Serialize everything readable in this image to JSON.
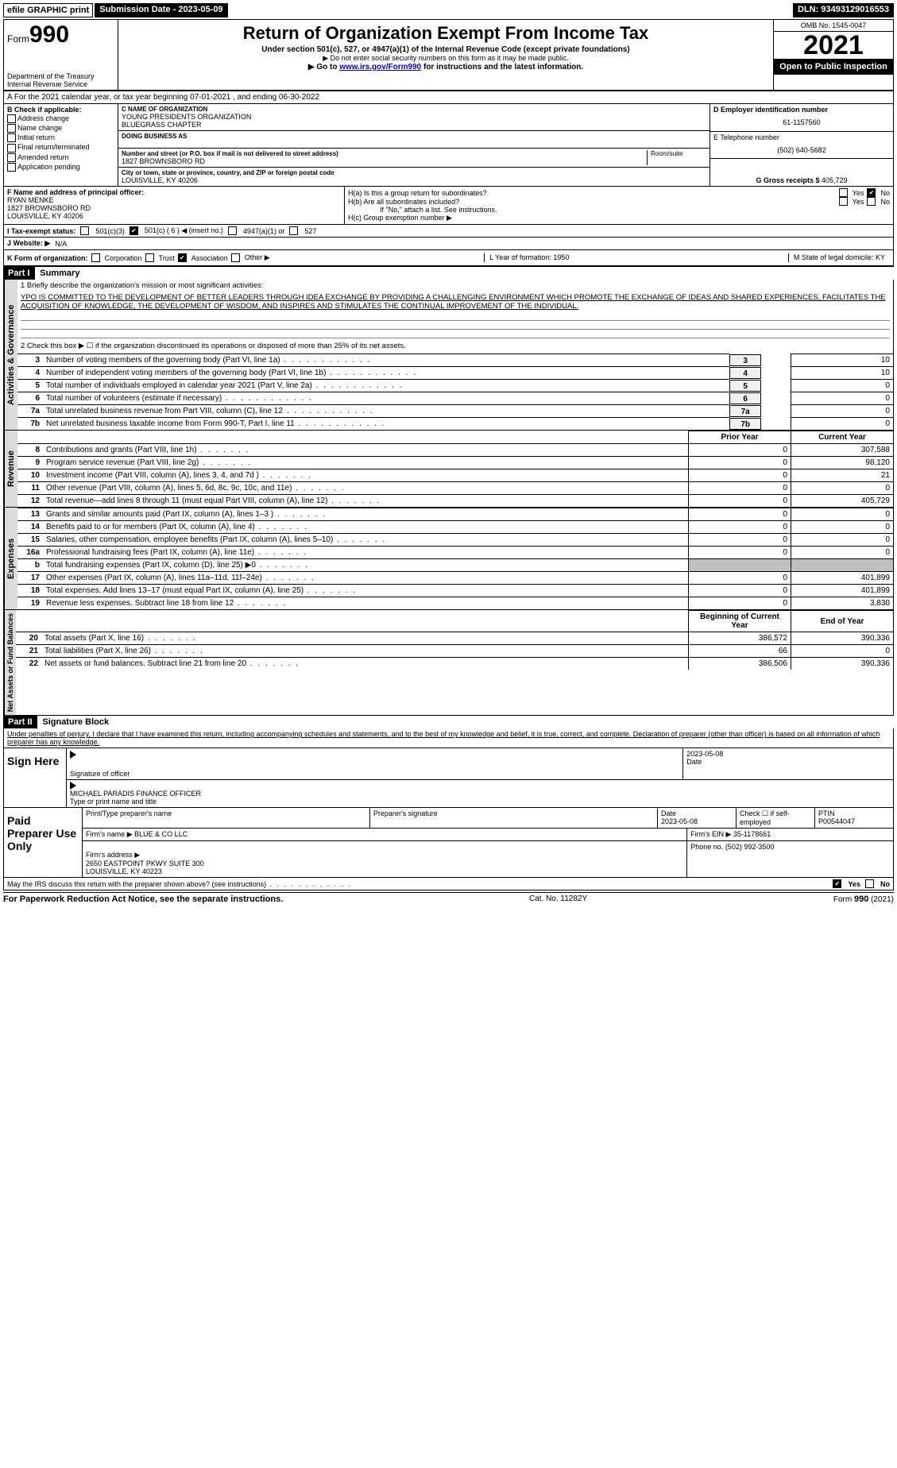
{
  "meta": {
    "efile": "efile GRAPHIC print",
    "submission_label": "Submission Date - 2023-05-09",
    "dln": "DLN: 93493129016553"
  },
  "header": {
    "form_prefix": "Form",
    "form_number": "990",
    "title": "Return of Organization Exempt From Income Tax",
    "subtitle1": "Under section 501(c), 527, or 4947(a)(1) of the Internal Revenue Code (except private foundations)",
    "subtitle2": "▶ Do not enter social security numbers on this form as it may be made public.",
    "goto_pre": "▶ Go to ",
    "goto_link": "www.irs.gov/Form990",
    "goto_post": " for instructions and the latest information.",
    "dept": "Department of the Treasury\nInternal Revenue Service",
    "omb": "OMB No. 1545-0047",
    "year": "2021",
    "open": "Open to Public Inspection"
  },
  "a_line": "A For the 2021 calendar year, or tax year beginning 07-01-2021    , and ending 06-30-2022",
  "b": {
    "label": "B Check if applicable:",
    "items": [
      "Address change",
      "Name change",
      "Initial return",
      "Final return/terminated",
      "Amended return",
      "Application pending"
    ]
  },
  "c": {
    "label": "C Name of organization",
    "name": "YOUNG PRESIDENTS ORGANIZATION\nBLUEGRASS CHAPTER",
    "dba_label": "Doing business as",
    "addr_label": "Number and street (or P.O. box if mail is not delivered to street address)",
    "room": "Room/suite",
    "addr": "1827 BROWNSBORO RD",
    "city_label": "City or town, state or province, country, and ZIP or foreign postal code",
    "city": "LOUISVILLE, KY  40206"
  },
  "right": {
    "d_label": "D Employer identification number",
    "d_val": "61-1157560",
    "e_label": "E Telephone number",
    "e_val": "(502) 640-5682",
    "g_label": "G Gross receipts $",
    "g_val": "405,729"
  },
  "f": {
    "label": "F Name and address of principal officer:",
    "name": "RYAN MENKE",
    "addr1": "1827 BROWNSBORO RD",
    "addr2": "LOUISVILLE, KY  40206"
  },
  "h": {
    "a": "H(a)  Is this a group return for subordinates?",
    "b": "H(b)  Are all subordinates included?",
    "note": "If \"No,\" attach a list. See instructions.",
    "c": "H(c)  Group exemption number ▶",
    "yes": "Yes",
    "no": "No"
  },
  "i": {
    "label": "I   Tax-exempt status:",
    "opts": [
      "501(c)(3)",
      "501(c) ( 6 ) ◀ (insert no.)",
      "4947(a)(1) or",
      "527"
    ]
  },
  "j": {
    "label": "J   Website: ▶",
    "val": "N/A"
  },
  "k": {
    "label": "K Form of organization:",
    "opts": [
      "Corporation",
      "Trust",
      "Association",
      "Other ▶"
    ],
    "l": "L Year of formation: 1950",
    "m": "M State of legal domicile: KY"
  },
  "part1": {
    "hdr": "Part I",
    "title": "Summary",
    "q1": "1  Briefly describe the organization's mission or most significant activities:",
    "mission": "YPO IS COMMITTED TO THE DEVELOPMENT OF BETTER LEADERS THROUGH IDEA EXCHANGE BY PROVIDING A CHALLENGING ENVIRONMENT WHICH PROMOTE THE EXCHANGE OF IDEAS AND SHARED EXPERIENCES, FACILITATES THE ACQUISITION OF KNOWLEDGE, THE DEVELOPMENT OF WISDOM, AND INSPIRES AND STIMULATES THE CONTINUAL IMPROVEMENT OF THE INDIVIDUAL.",
    "q2": "2   Check this box ▶ ☐  if the organization discontinued its operations or disposed of more than 25% of its net assets.",
    "vtabs": [
      "Activities & Governance",
      "Revenue",
      "Expenses",
      "Net Assets or Fund Balances"
    ]
  },
  "gov_lines": [
    {
      "n": "3",
      "d": "Number of voting members of the governing body (Part VI, line 1a)",
      "box": "3",
      "v": "10"
    },
    {
      "n": "4",
      "d": "Number of independent voting members of the governing body (Part VI, line 1b)",
      "box": "4",
      "v": "10"
    },
    {
      "n": "5",
      "d": "Total number of individuals employed in calendar year 2021 (Part V, line 2a)",
      "box": "5",
      "v": "0"
    },
    {
      "n": "6",
      "d": "Total number of volunteers (estimate if necessary)",
      "box": "6",
      "v": "0"
    },
    {
      "n": "7a",
      "d": "Total unrelated business revenue from Part VIII, column (C), line 12",
      "box": "7a",
      "v": "0"
    },
    {
      "n": "7b",
      "d": "Net unrelated business taxable income from Form 990-T, Part I, line 11",
      "box": "7b",
      "v": "0"
    }
  ],
  "two_col_hdr": {
    "prior": "Prior Year",
    "current": "Current Year"
  },
  "rev_lines": [
    {
      "n": "8",
      "d": "Contributions and grants (Part VIII, line 1h)",
      "p": "0",
      "c": "307,588"
    },
    {
      "n": "9",
      "d": "Program service revenue (Part VIII, line 2g)",
      "p": "0",
      "c": "98,120"
    },
    {
      "n": "10",
      "d": "Investment income (Part VIII, column (A), lines 3, 4, and 7d )",
      "p": "0",
      "c": "21"
    },
    {
      "n": "11",
      "d": "Other revenue (Part VIII, column (A), lines 5, 6d, 8c, 9c, 10c, and 11e)",
      "p": "0",
      "c": "0"
    },
    {
      "n": "12",
      "d": "Total revenue—add lines 8 through 11 (must equal Part VIII, column (A), line 12)",
      "p": "0",
      "c": "405,729"
    }
  ],
  "exp_lines": [
    {
      "n": "13",
      "d": "Grants and similar amounts paid (Part IX, column (A), lines 1–3 )",
      "p": "0",
      "c": "0"
    },
    {
      "n": "14",
      "d": "Benefits paid to or for members (Part IX, column (A), line 4)",
      "p": "0",
      "c": "0"
    },
    {
      "n": "15",
      "d": "Salaries, other compensation, employee benefits (Part IX, column (A), lines 5–10)",
      "p": "0",
      "c": "0"
    },
    {
      "n": "16a",
      "d": "Professional fundraising fees (Part IX, column (A), line 11e)",
      "p": "0",
      "c": "0"
    },
    {
      "n": "b",
      "d": "Total fundraising expenses (Part IX, column (D), line 25) ▶0",
      "p": "gray",
      "c": "gray"
    },
    {
      "n": "17",
      "d": "Other expenses (Part IX, column (A), lines 11a–11d, 11f–24e)",
      "p": "0",
      "c": "401,899"
    },
    {
      "n": "18",
      "d": "Total expenses. Add lines 13–17 (must equal Part IX, column (A), line 25)",
      "p": "0",
      "c": "401,899"
    },
    {
      "n": "19",
      "d": "Revenue less expenses. Subtract line 18 from line 12",
      "p": "0",
      "c": "3,830"
    }
  ],
  "net_hdr": {
    "begin": "Beginning of Current Year",
    "end": "End of Year"
  },
  "net_lines": [
    {
      "n": "20",
      "d": "Total assets (Part X, line 16)",
      "p": "386,572",
      "c": "390,336"
    },
    {
      "n": "21",
      "d": "Total liabilities (Part X, line 26)",
      "p": "66",
      "c": "0"
    },
    {
      "n": "22",
      "d": "Net assets or fund balances. Subtract line 21 from line 20",
      "p": "386,506",
      "c": "390,336"
    }
  ],
  "part2": {
    "hdr": "Part II",
    "title": "Signature Block",
    "decl": "Under penalties of perjury, I declare that I have examined this return, including accompanying schedules and statements, and to the best of my knowledge and belief, it is true, correct, and complete. Declaration of preparer (other than officer) is based on all information of which preparer has any knowledge."
  },
  "sign": {
    "here": "Sign Here",
    "sig_officer": "Signature of officer",
    "date": "Date",
    "date_val": "2023-05-08",
    "name": "MICHAEL PARADIS  FINANCE OFFICER",
    "name_label": "Type or print name and title"
  },
  "paid": {
    "label": "Paid Preparer Use Only",
    "pt_name": "Print/Type preparer's name",
    "pt_sig": "Preparer's signature",
    "pt_date": "Date",
    "pt_date_val": "2023-05-08",
    "check": "Check ☐ if self-employed",
    "ptin_label": "PTIN",
    "ptin": "P00544047",
    "firm_name_l": "Firm's name    ▶",
    "firm_name": "BLUE & CO LLC",
    "firm_ein_l": "Firm's EIN ▶",
    "firm_ein": "35-1178661",
    "firm_addr_l": "Firm's address ▶",
    "firm_addr": "2650 EASTPOINT PKWY SUITE 300\nLOUISVILLE, KY  40223",
    "phone_l": "Phone no.",
    "phone": "(502) 992-3500"
  },
  "discuss": {
    "q": "May the IRS discuss this return with the preparer shown above? (see instructions)",
    "yes": "Yes",
    "no": "No"
  },
  "footer": {
    "left": "For Paperwork Reduction Act Notice, see the separate instructions.",
    "mid": "Cat. No. 11282Y",
    "right_pre": "Form ",
    "right_b": "990",
    "right_post": " (2021)"
  }
}
